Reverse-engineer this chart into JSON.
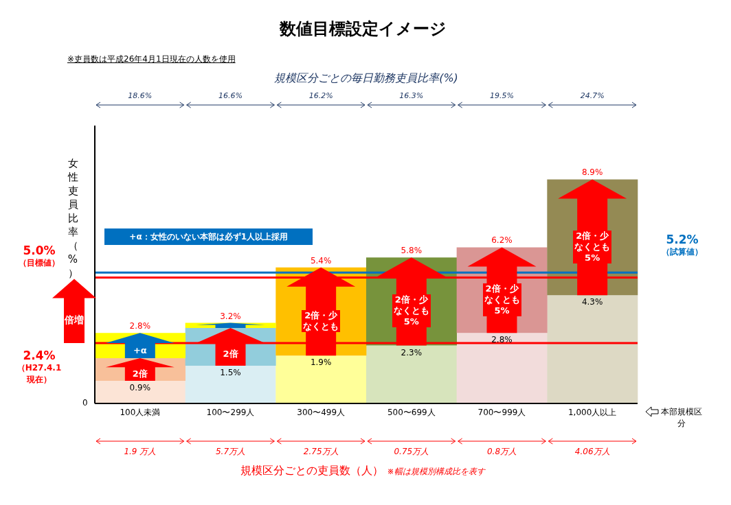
{
  "chart_data": {
    "type": "bar",
    "title": "数値目標設定イメージ",
    "ylabel": "女性吏員比率（%）",
    "xlabel": "規模区分ごとの吏員数（人）",
    "categories": [
      "100人未満",
      "100〜299人",
      "300〜499人",
      "500〜699人",
      "700〜999人",
      "1,000人以上"
    ],
    "stacked": true,
    "series": [
      {
        "colors": [
          "#fce4d6",
          "#daeef3",
          "#ffff99",
          "#d7e4bc",
          "#f2dcdb",
          "#ddd9c4"
        ],
        "values": [
          0.9,
          1.5,
          1.9,
          2.3,
          2.8,
          4.3
        ],
        "value_labels": [
          "0.9%",
          "1.5%",
          "1.9%",
          "2.3%",
          "2.8%",
          "4.3%"
        ]
      },
      {
        "colors": [
          "#f8c09a",
          "#92cddc",
          "#ffc000",
          "#77933c",
          "#da9694",
          "#948a54"
        ],
        "values": [
          0.9,
          1.5,
          3.5,
          3.5,
          3.4,
          4.6
        ]
      },
      {
        "colors": [
          "#ffff00",
          "#ffff00",
          null,
          null,
          null,
          null
        ],
        "values": [
          1.0,
          0.2,
          null,
          null,
          null,
          null
        ]
      }
    ],
    "totals": [
      "2.8%",
      "3.2%",
      "5.4%",
      "5.8%",
      "6.2%",
      "8.9%"
    ],
    "ref_lines": [
      {
        "axis": "y",
        "value": 5.0,
        "label": "5.0%\n（目標値）",
        "color": "#ff0000"
      },
      {
        "axis": "y",
        "value": 2.4,
        "label": "2.4%\n（H27.4.1\n現在）",
        "color": "#ff0000"
      },
      {
        "axis": "y",
        "value": 5.2,
        "label": "5.2%\n（試算値）",
        "color": "#0070c0"
      }
    ],
    "annotations": [
      "※吏員数は平成26年4月1日現在の人数を使用",
      "規模区分ごとの毎日勤務吏員比率(%)",
      "18.6%",
      "16.6%",
      "16.2%",
      "16.3%",
      "19.5%",
      "24.7%",
      "1.9 万人",
      "5.7万人",
      "2.75万人",
      "0.75万人",
      "0.8万人",
      "4.06万人",
      "※幅は規模別構成比を表す",
      "本部規模区分",
      "+α：女性のいない本部は必ず1人以上採用",
      "倍増",
      "2倍",
      "2倍",
      "2倍・少なくとも",
      "2倍・少なくとも5%",
      "2倍・少なくとも5%",
      "2倍・少なくとも5%",
      "+α",
      "0"
    ]
  }
}
